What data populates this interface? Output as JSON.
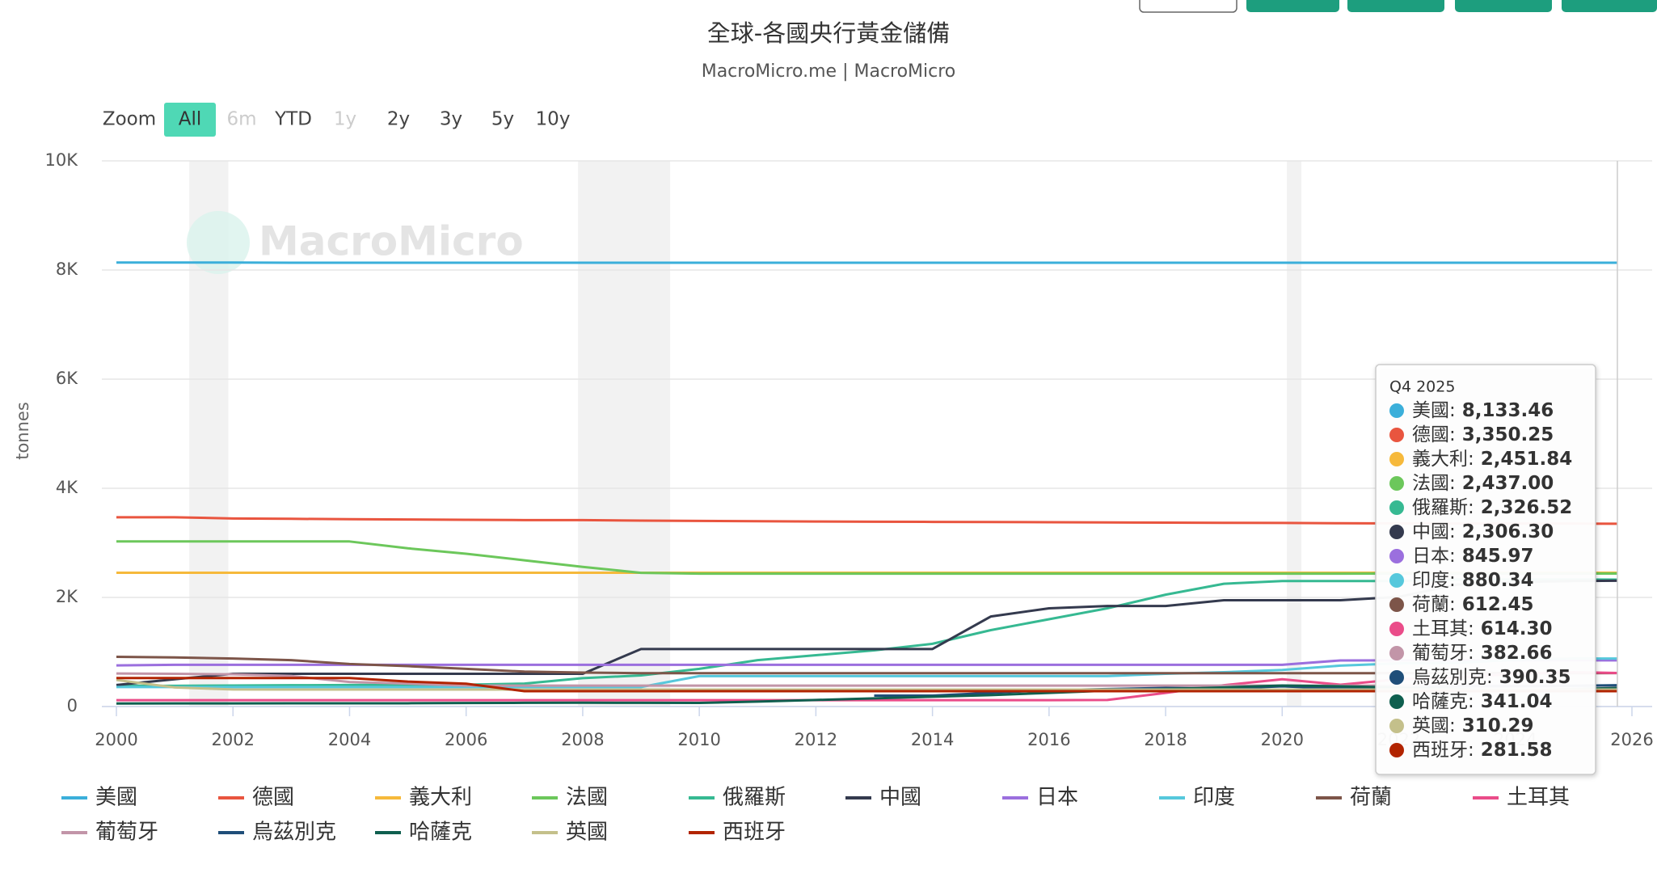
{
  "chart_data": {
    "type": "line",
    "title": "全球-各國央行黃金儲備",
    "subtitle": "MacroMicro.me | MacroMicro",
    "watermark": "MacroMicro",
    "y_label": "tonnes",
    "range_selector": {
      "label": "Zoom",
      "buttons": [
        "All",
        "6m",
        "YTD",
        "1y",
        "2y",
        "3y",
        "5y",
        "10y"
      ],
      "selected": 0,
      "disabled": [
        1,
        3
      ]
    },
    "grid": true,
    "xlim": [
      2000,
      2026
    ],
    "xticks": [
      2000,
      2002,
      2004,
      2006,
      2008,
      2010,
      2012,
      2014,
      2016,
      2018,
      2020,
      2022,
      2024,
      2026
    ],
    "ylim": [
      0,
      10000
    ],
    "yticks": [
      {
        "value": 0,
        "label": "0"
      },
      {
        "value": 2000,
        "label": "2K"
      },
      {
        "value": 4000,
        "label": "4K"
      },
      {
        "value": 6000,
        "label": "6K"
      },
      {
        "value": 8000,
        "label": "8K"
      },
      {
        "value": 10000,
        "label": "10K"
      }
    ],
    "bands": [
      [
        2001.25,
        2001.92
      ],
      [
        2007.92,
        2009.5
      ],
      [
        2020.08,
        2020.33
      ]
    ],
    "x": [
      2000,
      2001,
      2002,
      2003,
      2004,
      2005,
      2006,
      2007,
      2008,
      2009,
      2010,
      2011,
      2012,
      2013,
      2014,
      2015,
      2016,
      2017,
      2018,
      2019,
      2020,
      2021,
      2022,
      2023,
      2024,
      2025,
      2025.75
    ],
    "series": [
      {
        "name": "美國",
        "color": "#3bafda",
        "values": [
          8137,
          8137,
          8137,
          8134,
          8134,
          8134,
          8134,
          8134,
          8134,
          8134,
          8134,
          8134,
          8134,
          8134,
          8134,
          8134,
          8134,
          8134,
          8134,
          8134,
          8134,
          8134,
          8134,
          8134,
          8134,
          8134,
          8133.46
        ]
      },
      {
        "name": "德國",
        "color": "#e9553f",
        "values": [
          3469,
          3469,
          3446,
          3440,
          3433,
          3428,
          3423,
          3417,
          3417,
          3408,
          3401,
          3396,
          3391,
          3387,
          3384,
          3381,
          3378,
          3374,
          3370,
          3367,
          3364,
          3359,
          3355,
          3352,
          3351,
          3351,
          3350.25
        ]
      },
      {
        "name": "義大利",
        "color": "#f6b93b",
        "values": [
          2452,
          2452,
          2452,
          2452,
          2452,
          2452,
          2452,
          2452,
          2452,
          2452,
          2452,
          2452,
          2452,
          2452,
          2452,
          2452,
          2452,
          2452,
          2452,
          2452,
          2452,
          2452,
          2452,
          2452,
          2452,
          2452,
          2451.84
        ]
      },
      {
        "name": "法國",
        "color": "#6cc75b",
        "values": [
          3025,
          3025,
          3025,
          3025,
          3025,
          2900,
          2800,
          2680,
          2560,
          2450,
          2435,
          2435,
          2436,
          2436,
          2436,
          2436,
          2436,
          2436,
          2436,
          2436,
          2436,
          2436,
          2437,
          2437,
          2437,
          2437,
          2437
        ]
      },
      {
        "name": "俄羅斯",
        "color": "#36b992",
        "values": [
          380,
          380,
          385,
          390,
          395,
          400,
          400,
          420,
          520,
          570,
          690,
          850,
          940,
          1030,
          1150,
          1400,
          1600,
          1800,
          2050,
          2250,
          2300,
          2300,
          2300,
          2330,
          2330,
          2330,
          2326.52
        ]
      },
      {
        "name": "中國",
        "color": "#343a4e",
        "values": [
          395,
          500,
          600,
          600,
          600,
          600,
          600,
          600,
          600,
          1054,
          1054,
          1054,
          1054,
          1054,
          1054,
          1650,
          1800,
          1842,
          1842,
          1948,
          1948,
          1948,
          2010,
          2235,
          2280,
          2300,
          2306.3
        ]
      },
      {
        "name": "日本",
        "color": "#9b6fde",
        "values": [
          754,
          765,
          765,
          765,
          765,
          765,
          765,
          765,
          765,
          765,
          765,
          765,
          765,
          765,
          765,
          765,
          765,
          765,
          765,
          765,
          765,
          845,
          846,
          846,
          846,
          846,
          845.97
        ]
      },
      {
        "name": "印度",
        "color": "#56c8dc",
        "values": [
          358,
          358,
          358,
          358,
          358,
          358,
          358,
          358,
          358,
          358,
          558,
          558,
          558,
          558,
          558,
          558,
          558,
          558,
          600,
          630,
          670,
          750,
          790,
          800,
          860,
          880,
          880.34
        ]
      },
      {
        "name": "荷蘭",
        "color": "#7d5549",
        "values": [
          912,
          900,
          880,
          850,
          780,
          740,
          690,
          640,
          622,
          612,
          612,
          612,
          612,
          612,
          612,
          612,
          612,
          612,
          612,
          612,
          612,
          612,
          612,
          612,
          612,
          612,
          612.45
        ]
      },
      {
        "name": "土耳其",
        "color": "#ea4c89",
        "values": [
          116,
          116,
          116,
          116,
          116,
          116,
          116,
          116,
          116,
          116,
          116,
          116,
          116,
          116,
          116,
          116,
          116,
          120,
          250,
          390,
          500,
          400,
          500,
          530,
          600,
          630,
          614.3
        ]
      },
      {
        "name": "葡萄牙",
        "color": "#c295a8",
        "values": [
          606,
          600,
          590,
          560,
          450,
          420,
          383,
          383,
          383,
          383,
          383,
          383,
          383,
          383,
          383,
          383,
          383,
          383,
          383,
          383,
          383,
          383,
          383,
          383,
          383,
          383,
          382.66
        ]
      },
      {
        "name": "烏茲別克",
        "color": "#1f4e79",
        "values": [
          null,
          null,
          null,
          null,
          null,
          null,
          null,
          null,
          null,
          null,
          null,
          null,
          null,
          200,
          200,
          250,
          300,
          320,
          340,
          330,
          370,
          330,
          340,
          370,
          370,
          380,
          390.35
        ]
      },
      {
        "name": "哈薩克",
        "color": "#0f5f4f",
        "values": [
          56,
          57,
          58,
          59,
          60,
          60,
          65,
          68,
          70,
          68,
          67,
          90,
          120,
          150,
          180,
          210,
          250,
          290,
          320,
          350,
          385,
          370,
          350,
          320,
          300,
          320,
          341.04
        ]
      },
      {
        "name": "英國",
        "color": "#c4c08b",
        "values": [
          487,
          350,
          313,
          312,
          312,
          311,
          311,
          311,
          311,
          311,
          311,
          311,
          311,
          311,
          311,
          311,
          311,
          311,
          311,
          311,
          311,
          311,
          311,
          311,
          311,
          311,
          310.29
        ]
      },
      {
        "name": "西班牙",
        "color": "#b22400",
        "values": [
          523,
          523,
          523,
          523,
          523,
          457,
          418,
          282,
          282,
          282,
          282,
          282,
          282,
          282,
          282,
          282,
          282,
          282,
          282,
          282,
          282,
          282,
          282,
          282,
          282,
          282,
          281.58
        ]
      }
    ],
    "tooltip": {
      "title": "Q4 2025",
      "separator": ":",
      "values": [
        {
          "value": 8133.46,
          "label": "8,133.46"
        },
        {
          "value": 3350.25,
          "label": "3,350.25"
        },
        {
          "value": 2451.84,
          "label": "2,451.84"
        },
        {
          "value": 2437.0,
          "label": "2,437.00"
        },
        {
          "value": 2326.52,
          "label": "2,326.52"
        },
        {
          "value": 2306.3,
          "label": "2,306.30"
        },
        {
          "value": 845.97,
          "label": "845.97"
        },
        {
          "value": 880.34,
          "label": "880.34"
        },
        {
          "value": 612.45,
          "label": "612.45"
        },
        {
          "value": 614.3,
          "label": "614.30"
        },
        {
          "value": 382.66,
          "label": "382.66"
        },
        {
          "value": 390.35,
          "label": "390.35"
        },
        {
          "value": 341.04,
          "label": "341.04"
        },
        {
          "value": 310.29,
          "label": "310.29"
        },
        {
          "value": 281.58,
          "label": "281.58"
        }
      ]
    }
  }
}
